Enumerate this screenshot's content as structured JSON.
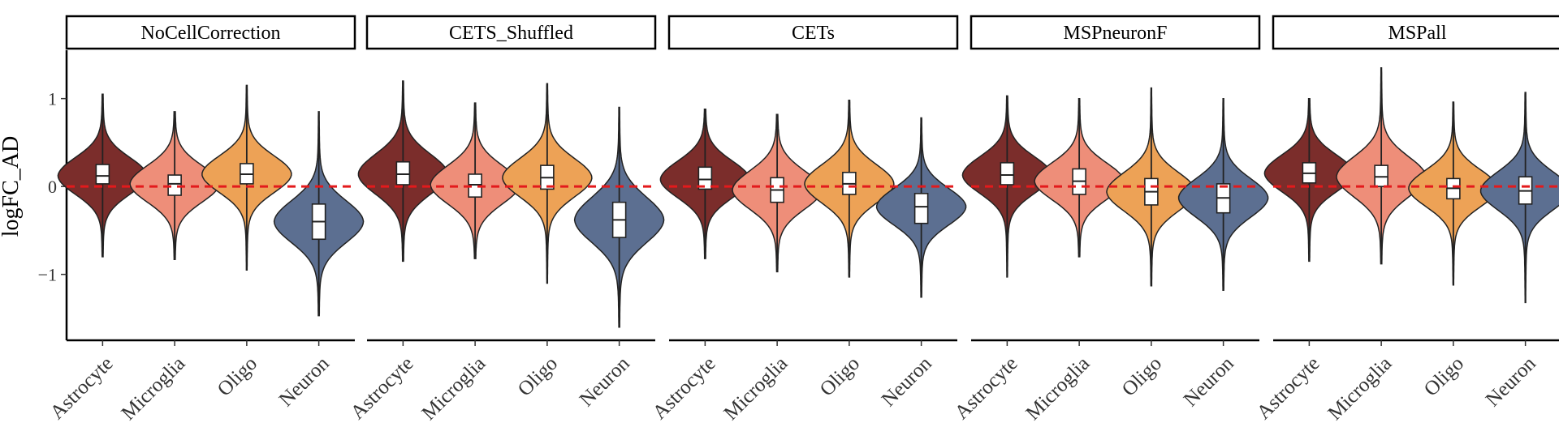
{
  "chart_data": {
    "type": "violin",
    "ylabel": "logFC_AD",
    "xlabel": "",
    "ylim": [
      -1.75,
      1.55
    ],
    "yticks": [
      -1,
      0,
      1
    ],
    "ytick_labels": [
      "−1",
      "0",
      "1"
    ],
    "reference_line": 0,
    "categories": [
      "Astrocyte",
      "Microglia",
      "Oligo",
      "Neuron"
    ],
    "colors": {
      "Astrocyte": "#7b2d2b",
      "Microglia": "#ee8e79",
      "Oligo": "#eda256",
      "Neuron": "#5c6f91",
      "reference_line": "#e31a1c"
    },
    "panels": [
      {
        "title": "NoCellCorrection",
        "violins": [
          {
            "category": "Astrocyte",
            "min": -0.8,
            "max": 1.05,
            "q1": 0.03,
            "median": 0.12,
            "q3": 0.25,
            "mode": 0.12,
            "spread": 0.21
          },
          {
            "category": "Microglia",
            "min": -0.83,
            "max": 0.85,
            "q1": -0.1,
            "median": 0.03,
            "q3": 0.13,
            "mode": 0.03,
            "spread": 0.21
          },
          {
            "category": "Oligo",
            "min": -0.95,
            "max": 1.15,
            "q1": 0.03,
            "median": 0.14,
            "q3": 0.26,
            "mode": 0.14,
            "spread": 0.21
          },
          {
            "category": "Neuron",
            "min": -1.47,
            "max": 0.85,
            "q1": -0.6,
            "median": -0.4,
            "q3": -0.2,
            "mode": -0.4,
            "spread": 0.24
          }
        ]
      },
      {
        "title": "CETS_Shuffled",
        "violins": [
          {
            "category": "Astrocyte",
            "min": -0.85,
            "max": 1.2,
            "q1": 0.02,
            "median": 0.14,
            "q3": 0.28,
            "mode": 0.14,
            "spread": 0.23
          },
          {
            "category": "Microglia",
            "min": -0.82,
            "max": 0.95,
            "q1": -0.12,
            "median": 0.02,
            "q3": 0.14,
            "mode": 0.02,
            "spread": 0.22
          },
          {
            "category": "Oligo",
            "min": -1.1,
            "max": 1.17,
            "q1": -0.03,
            "median": 0.1,
            "q3": 0.24,
            "mode": 0.1,
            "spread": 0.22
          },
          {
            "category": "Neuron",
            "min": -1.6,
            "max": 0.9,
            "q1": -0.58,
            "median": -0.38,
            "q3": -0.18,
            "mode": -0.38,
            "spread": 0.26
          }
        ]
      },
      {
        "title": "CETs",
        "violins": [
          {
            "category": "Astrocyte",
            "min": -0.82,
            "max": 0.88,
            "q1": -0.03,
            "median": 0.08,
            "q3": 0.22,
            "mode": 0.08,
            "spread": 0.21
          },
          {
            "category": "Microglia",
            "min": -0.97,
            "max": 0.82,
            "q1": -0.18,
            "median": -0.04,
            "q3": 0.1,
            "mode": -0.04,
            "spread": 0.22
          },
          {
            "category": "Oligo",
            "min": -1.03,
            "max": 0.98,
            "q1": -0.09,
            "median": 0.03,
            "q3": 0.16,
            "mode": 0.03,
            "spread": 0.22
          },
          {
            "category": "Neuron",
            "min": -1.26,
            "max": 0.78,
            "q1": -0.42,
            "median": -0.23,
            "q3": -0.08,
            "mode": -0.23,
            "spread": 0.21
          }
        ]
      },
      {
        "title": "MSPneuronF",
        "violins": [
          {
            "category": "Astrocyte",
            "min": -1.03,
            "max": 1.03,
            "q1": 0.02,
            "median": 0.13,
            "q3": 0.27,
            "mode": 0.13,
            "spread": 0.21
          },
          {
            "category": "Microglia",
            "min": -0.8,
            "max": 1.0,
            "q1": -0.09,
            "median": 0.06,
            "q3": 0.2,
            "mode": 0.06,
            "spread": 0.21
          },
          {
            "category": "Oligo",
            "min": -1.13,
            "max": 1.12,
            "q1": -0.21,
            "median": -0.06,
            "q3": 0.09,
            "mode": -0.06,
            "spread": 0.22
          },
          {
            "category": "Neuron",
            "min": -1.18,
            "max": 1.0,
            "q1": -0.3,
            "median": -0.13,
            "q3": 0.03,
            "mode": -0.13,
            "spread": 0.22
          }
        ]
      },
      {
        "title": "MSPall",
        "violins": [
          {
            "category": "Astrocyte",
            "min": -0.85,
            "max": 1.0,
            "q1": 0.04,
            "median": 0.15,
            "q3": 0.27,
            "mode": 0.15,
            "spread": 0.21
          },
          {
            "category": "Microglia",
            "min": -0.88,
            "max": 1.35,
            "q1": 0.0,
            "median": 0.11,
            "q3": 0.24,
            "mode": 0.11,
            "spread": 0.23
          },
          {
            "category": "Oligo",
            "min": -1.12,
            "max": 0.96,
            "q1": -0.14,
            "median": -0.02,
            "q3": 0.09,
            "mode": -0.02,
            "spread": 0.21
          },
          {
            "category": "Neuron",
            "min": -1.32,
            "max": 1.07,
            "q1": -0.2,
            "median": -0.05,
            "q3": 0.11,
            "mode": -0.05,
            "spread": 0.22
          }
        ]
      }
    ]
  }
}
